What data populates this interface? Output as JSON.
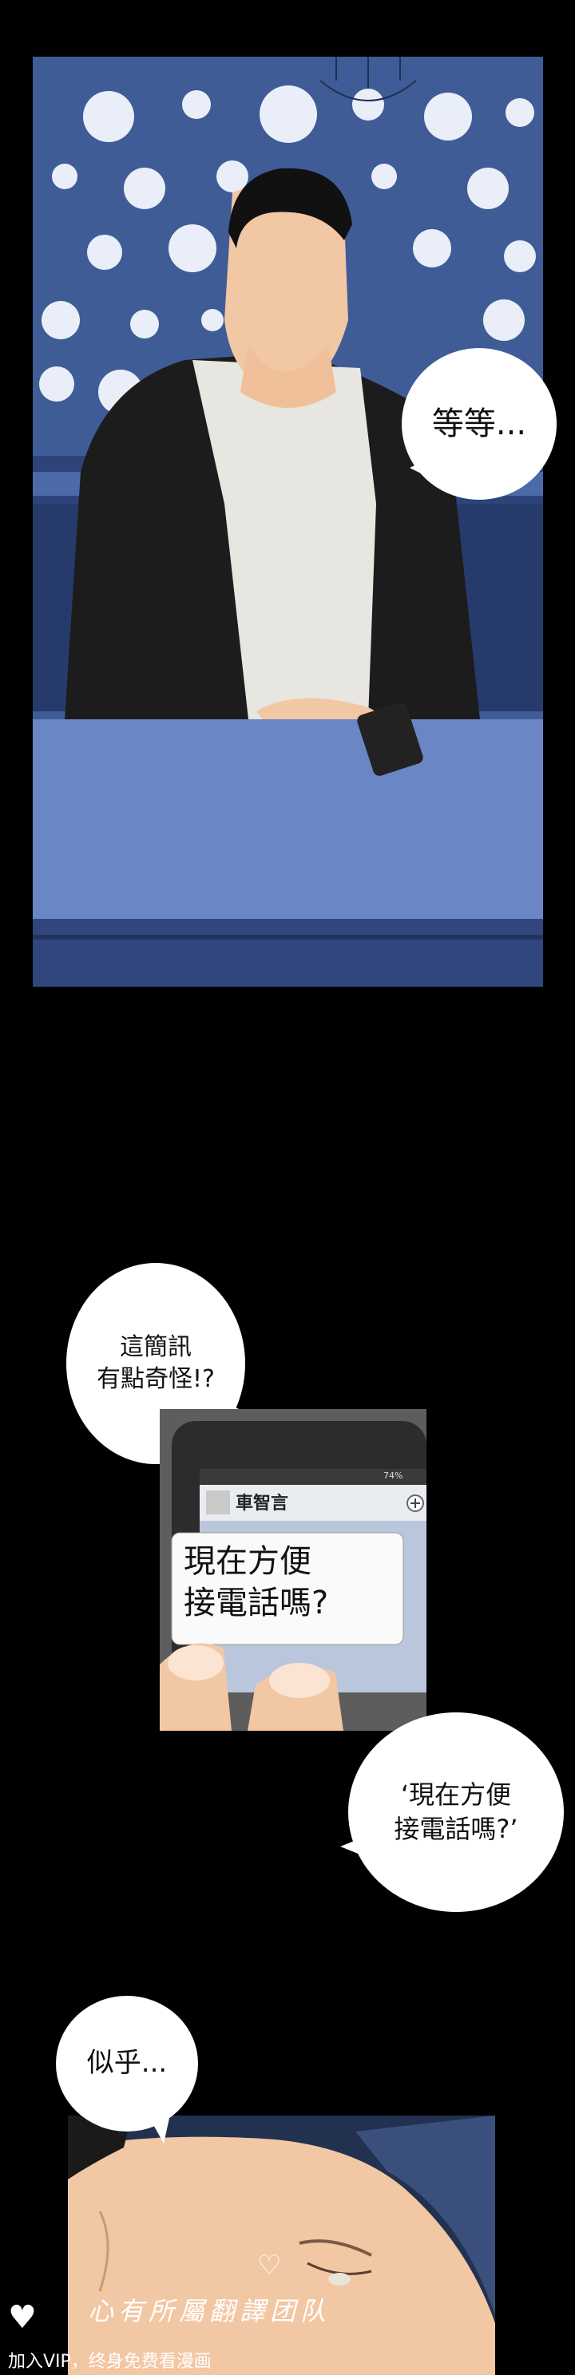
{
  "panel1": {
    "bubble_text": "等等..."
  },
  "panel2": {
    "bubble_text": "這簡訊\n有點奇怪!?",
    "phone": {
      "sender": "車智言",
      "battery": "74%",
      "message": "現在方便\n接電話嗎?"
    }
  },
  "panel3": {
    "bubble_text": "‘現在方便\n接電話嗎?’"
  },
  "panel4": {
    "bubble_text": "似乎..."
  },
  "watermark": {
    "group": "心有所屬翻譯团队",
    "promo": "加入VIP，终身免费看漫画"
  },
  "colors": {
    "background": "#000000",
    "wall_blue": "#3f5c96",
    "table_blue": "#6a86c4",
    "jacket": "#1c1c1c",
    "shirt": "#e7e6e0",
    "skin": "#f2c7a4"
  }
}
